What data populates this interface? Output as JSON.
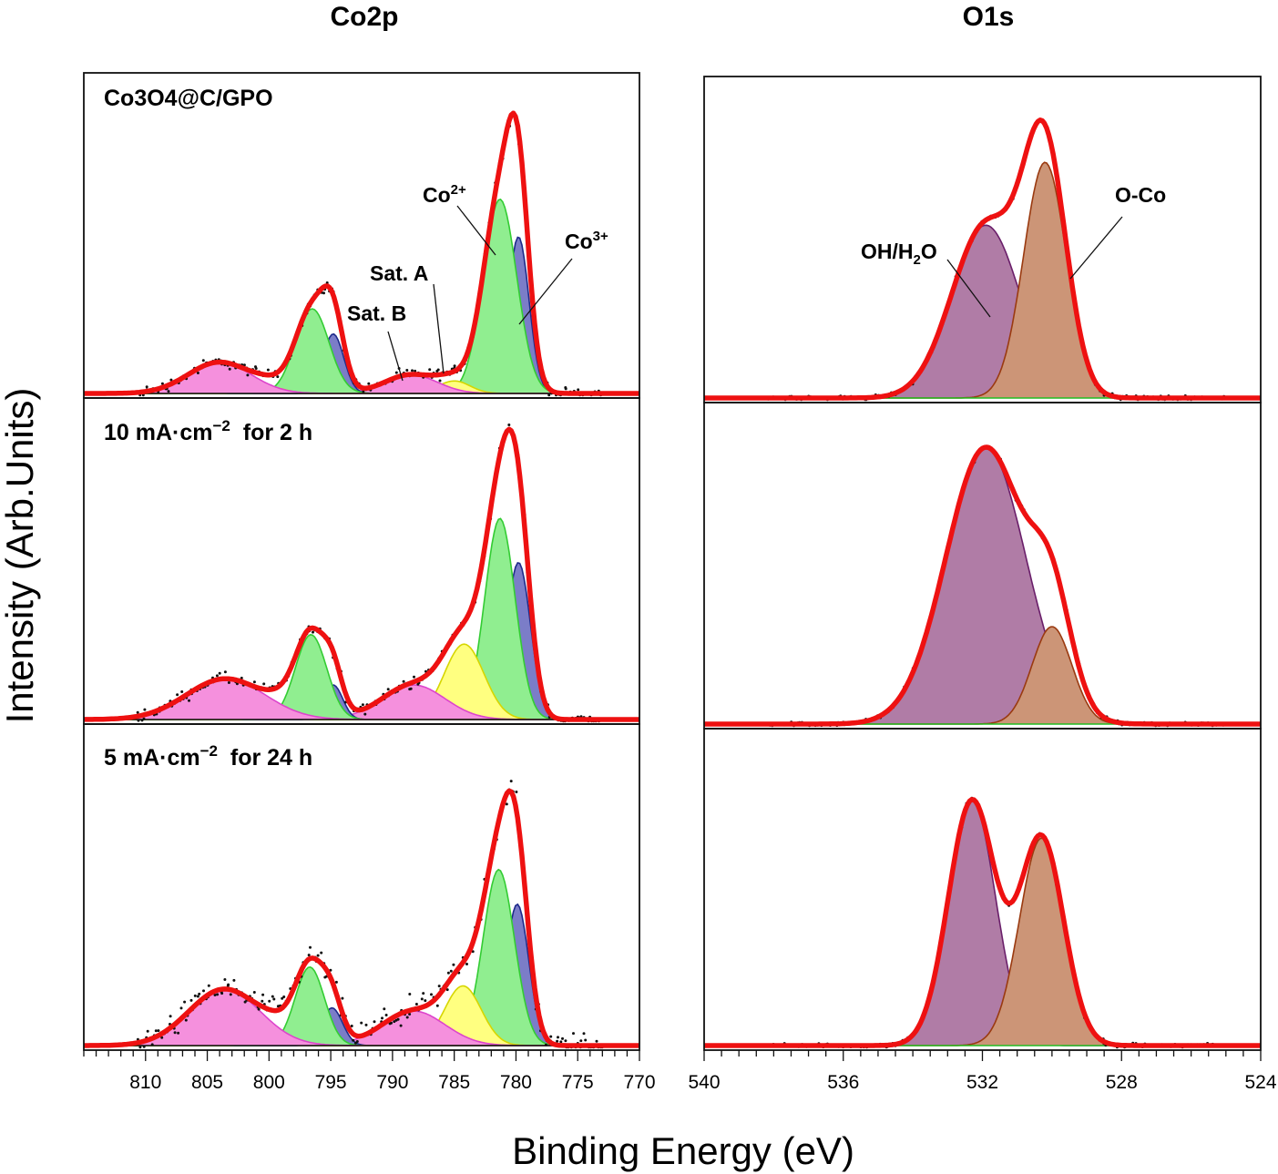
{
  "figure": {
    "column_titles": [
      "Co2p",
      "O1s"
    ],
    "ylabel": "Intensity (Arb.Units)",
    "xlabel": "Binding Energy (eV)",
    "row_labels": [
      {
        "text": "Co3O4@C/GPO"
      },
      {
        "pre": "10 mA·cm",
        "sup": "−2",
        "post": "  for 2 h"
      },
      {
        "pre": "5 mA·cm",
        "sup": "−2",
        "post": "  for 24 h"
      }
    ],
    "annotations": {
      "co2": {
        "base": "Co",
        "sup": "2+"
      },
      "co3": {
        "base": "Co",
        "sup": "3+"
      },
      "sat_a": "Sat. A",
      "sat_b": "Sat. B",
      "oh": {
        "base": "OH/H",
        "sub": "2",
        "tail": "O"
      },
      "oco": "O-Co"
    },
    "colors": {
      "envelope": "#ee1111",
      "points": "#111111",
      "co2_fill": "#90ee90",
      "co2_line": "#33cc33",
      "co3_fill": "#7b7dc8",
      "co3_line": "#1e2a8a",
      "satA_fill": "#ffff80",
      "satA_line": "#d6d600",
      "satB_fill": "#f590dd",
      "satB_line": "#dd44cc",
      "oh_fill": "#b07ca6",
      "oh_line": "#6a1f6a",
      "oco_fill": "#cc9577",
      "oco_line": "#9a3a10",
      "baseline": "#111111",
      "o_baseline": "#22bb22"
    }
  },
  "chart_data": [
    {
      "type": "area",
      "title": "Co2p",
      "panel": "Co3O4@C/GPO",
      "xlim": [
        815,
        770
      ],
      "xticks": [
        810,
        805,
        800,
        795,
        790,
        785,
        780,
        775,
        770
      ],
      "ylim": [
        0,
        1.0
      ],
      "components": [
        {
          "name": "Co3+ 2p3/2",
          "color_key": "co3",
          "center": 779.8,
          "fwhm": 2.0,
          "height": 0.5
        },
        {
          "name": "Co2+ 2p3/2",
          "color_key": "co2",
          "center": 781.3,
          "fwhm": 3.2,
          "height": 0.62
        },
        {
          "name": "Sat. A",
          "color_key": "satA",
          "center": 785.0,
          "fwhm": 3.0,
          "height": 0.04
        },
        {
          "name": "Sat. B",
          "color_key": "satB",
          "center": 788.5,
          "fwhm": 5.0,
          "height": 0.06
        },
        {
          "name": "Co3+ 2p1/2",
          "color_key": "co3",
          "center": 794.8,
          "fwhm": 2.0,
          "height": 0.19
        },
        {
          "name": "Co2+ 2p1/2",
          "color_key": "co2",
          "center": 796.5,
          "fwhm": 3.2,
          "height": 0.27
        },
        {
          "name": "Sat. A 2p1/2",
          "color_key": "satA",
          "center": 800.0,
          "fwhm": 3.0,
          "height": 0.02
        },
        {
          "name": "Sat. B 2p1/2",
          "color_key": "satB",
          "center": 804.0,
          "fwhm": 6.0,
          "height": 0.1
        }
      ]
    },
    {
      "type": "area",
      "title": "Co2p",
      "panel": "10 mA·cm−2 for 2 h",
      "xlim": [
        815,
        770
      ],
      "xticks": [
        810,
        805,
        800,
        795,
        790,
        785,
        780,
        775,
        770
      ],
      "ylim": [
        0,
        1.0
      ],
      "components": [
        {
          "name": "Co3+ 2p3/2",
          "color_key": "co3",
          "center": 779.8,
          "fwhm": 2.3,
          "height": 0.5
        },
        {
          "name": "Co2+ 2p3/2",
          "color_key": "co2",
          "center": 781.3,
          "fwhm": 2.9,
          "height": 0.64
        },
        {
          "name": "Sat. A",
          "color_key": "satA",
          "center": 784.2,
          "fwhm": 3.8,
          "height": 0.24
        },
        {
          "name": "Sat. B",
          "color_key": "satB",
          "center": 788.3,
          "fwhm": 6.0,
          "height": 0.11
        },
        {
          "name": "Co3+ 2p1/2",
          "color_key": "co3",
          "center": 794.8,
          "fwhm": 1.8,
          "height": 0.11
        },
        {
          "name": "Co2+ 2p1/2",
          "color_key": "co2",
          "center": 796.6,
          "fwhm": 3.0,
          "height": 0.27
        },
        {
          "name": "Sat. A 2p1/2",
          "color_key": "satA",
          "center": 799.3,
          "fwhm": 2.6,
          "height": 0.02
        },
        {
          "name": "Sat. B 2p1/2",
          "color_key": "satB",
          "center": 803.5,
          "fwhm": 7.5,
          "height": 0.13
        }
      ]
    },
    {
      "type": "area",
      "title": "Co2p",
      "panel": "5 mA·cm−2 for 24 h",
      "xlabel": "Binding Energy (eV)",
      "xlim": [
        815,
        770
      ],
      "xticks": [
        810,
        805,
        800,
        795,
        790,
        785,
        780,
        775,
        770
      ],
      "ylim": [
        0,
        1.0
      ],
      "components": [
        {
          "name": "Co3+ 2p3/2",
          "color_key": "co3",
          "center": 779.9,
          "fwhm": 2.2,
          "height": 0.45
        },
        {
          "name": "Co2+ 2p3/2",
          "color_key": "co2",
          "center": 781.4,
          "fwhm": 3.0,
          "height": 0.56
        },
        {
          "name": "Sat. A",
          "color_key": "satA",
          "center": 784.3,
          "fwhm": 3.5,
          "height": 0.19
        },
        {
          "name": "Sat. B",
          "color_key": "satB",
          "center": 788.3,
          "fwhm": 6.0,
          "height": 0.11
        },
        {
          "name": "Co3+ 2p1/2",
          "color_key": "co3",
          "center": 794.9,
          "fwhm": 2.0,
          "height": 0.12
        },
        {
          "name": "Co2+ 2p1/2",
          "color_key": "co2",
          "center": 796.7,
          "fwhm": 2.8,
          "height": 0.25
        },
        {
          "name": "Sat. A 2p1/2",
          "color_key": "satA",
          "center": 799.4,
          "fwhm": 3.0,
          "height": 0.03
        },
        {
          "name": "Sat. B 2p1/2",
          "color_key": "satB",
          "center": 803.6,
          "fwhm": 6.8,
          "height": 0.18
        }
      ]
    },
    {
      "type": "area",
      "title": "O1s",
      "panel": "Co3O4@C/GPO",
      "xlim": [
        540,
        524
      ],
      "xticks": [
        540,
        536,
        532,
        528,
        524
      ],
      "ylim": [
        0,
        1.0
      ],
      "components": [
        {
          "name": "OH/H2O",
          "color_key": "oh",
          "center": 531.9,
          "fwhm": 2.3,
          "height": 0.55
        },
        {
          "name": "O-Co",
          "color_key": "oco",
          "center": 530.2,
          "fwhm": 1.45,
          "height": 0.75
        }
      ]
    },
    {
      "type": "area",
      "title": "O1s",
      "panel": "10 mA·cm−2 for 2 h",
      "xlim": [
        540,
        524
      ],
      "xticks": [
        540,
        536,
        532,
        528,
        524
      ],
      "ylim": [
        0,
        1.0
      ],
      "components": [
        {
          "name": "OH/H2O",
          "color_key": "oh",
          "center": 531.9,
          "fwhm": 2.7,
          "height": 0.88
        },
        {
          "name": "O-Co",
          "color_key": "oco",
          "center": 530.0,
          "fwhm": 1.35,
          "height": 0.31
        }
      ]
    },
    {
      "type": "area",
      "title": "O1s",
      "panel": "5 mA·cm−2 for 24 h",
      "xlabel": "Binding Energy (eV)",
      "xlim": [
        540,
        524
      ],
      "xticks": [
        540,
        536,
        532,
        528,
        524
      ],
      "ylim": [
        0,
        1.0
      ],
      "components": [
        {
          "name": "OH/H2O",
          "color_key": "oh",
          "center": 532.3,
          "fwhm": 1.6,
          "height": 0.79
        },
        {
          "name": "O-Co",
          "color_key": "oco",
          "center": 530.3,
          "fwhm": 1.5,
          "height": 0.67
        }
      ]
    }
  ]
}
